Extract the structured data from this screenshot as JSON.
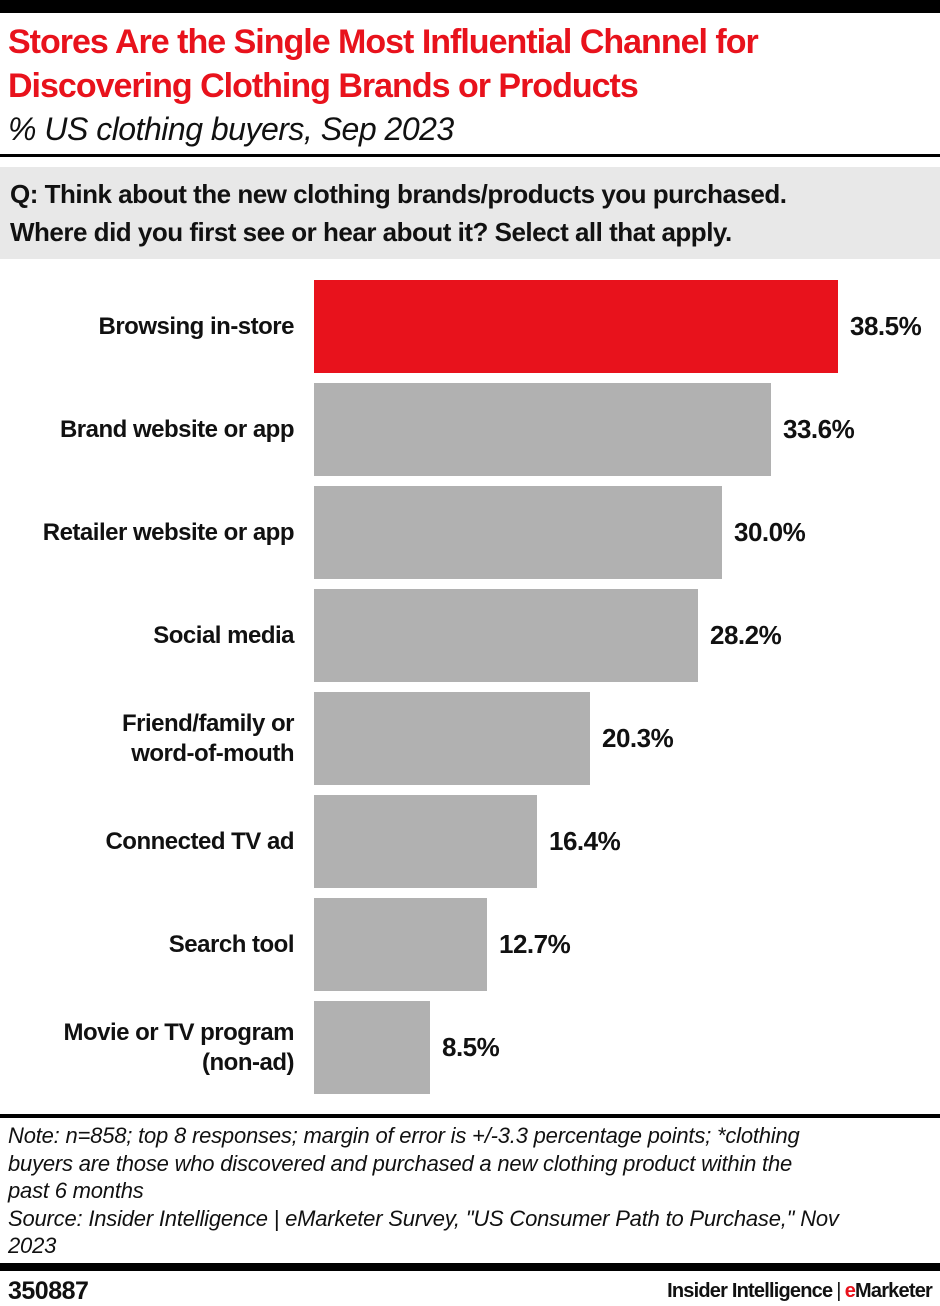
{
  "header": {
    "title": "Stores Are the Single Most Influential Channel for\nDiscovering Clothing Brands or Products",
    "subtitle": "% US clothing buyers, Sep 2023"
  },
  "question": "Q: Think about the new clothing brands/products you purchased.\nWhere did you first see or hear about it? Select all that apply.",
  "chart_data": {
    "type": "bar",
    "orientation": "horizontal",
    "title": "Stores Are the Single Most Influential Channel for Discovering Clothing Brands or Products",
    "subtitle": "% US clothing buyers, Sep 2023",
    "categories": [
      "Browsing in-store",
      "Brand website or app",
      "Retailer website or app",
      "Social media",
      "Friend/family or word-of-mouth",
      "Connected TV ad",
      "Search tool",
      "Movie or TV program (non-ad)"
    ],
    "categories_display": [
      "Browsing in-store",
      "Brand website or app",
      "Retailer website or app",
      "Social media",
      "Friend/family or\nword-of-mouth",
      "Connected TV ad",
      "Search tool",
      "Movie or TV program\n(non-ad)"
    ],
    "values": [
      38.5,
      33.6,
      30.0,
      28.2,
      20.3,
      16.4,
      12.7,
      8.5
    ],
    "value_labels": [
      "38.5%",
      "33.6%",
      "30.0%",
      "28.2%",
      "20.3%",
      "16.4%",
      "12.7%",
      "8.5%"
    ],
    "xlim": [
      0,
      40
    ],
    "grid": false,
    "legend": "none",
    "highlight_index": 0,
    "highlight_color": "#e8121c",
    "bar_color": "#b1b1b1"
  },
  "notes": {
    "note": "Note: n=858; top 8 responses; margin of error is +/-3.3 percentage points; *clothing\nbuyers are those who discovered and purchased a new clothing product within the\npast 6 months",
    "source": "Source: Insider Intelligence | eMarketer Survey, \"US Consumer Path to Purchase,\" Nov\n2023"
  },
  "footer": {
    "chart_id": "350887",
    "brand_left": "Insider Intelligence",
    "brand_separator": "|",
    "brand_e": "e",
    "brand_rest": "Marketer"
  },
  "colors": {
    "accent_red": "#e8121c",
    "bar_gray": "#b1b1b1",
    "question_bg": "#e8e8e8",
    "bar_black": "#000000",
    "text": "#111111"
  }
}
